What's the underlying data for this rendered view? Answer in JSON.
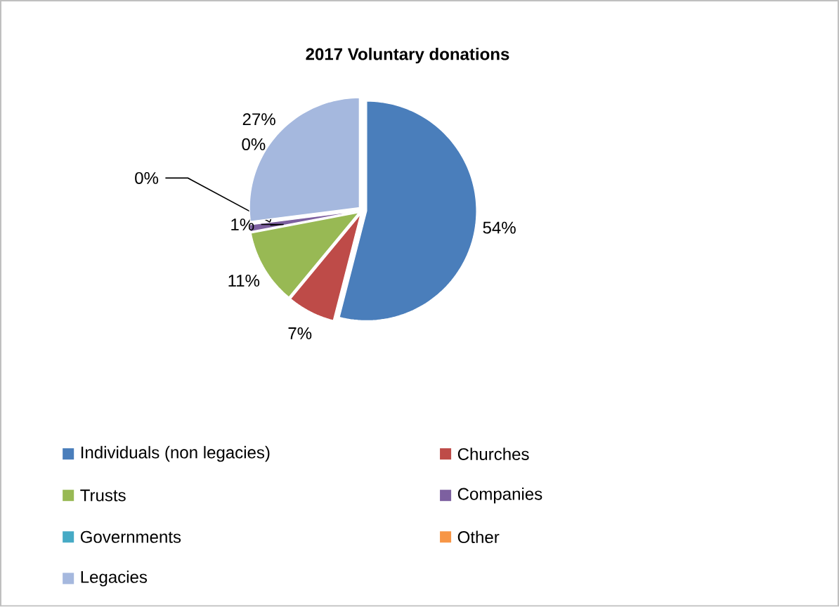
{
  "chart_data": {
    "type": "pie",
    "title": "2017 Voluntary donations",
    "categories": [
      "Individuals (non legacies)",
      "Churches",
      "Trusts",
      "Companies",
      "Governments",
      "Other",
      "Legacies"
    ],
    "values": [
      54,
      7,
      11,
      1,
      0,
      0,
      27
    ],
    "value_labels": [
      "54%",
      "7%",
      "11%",
      "1%",
      "0%",
      "0%",
      "27%"
    ],
    "colors": [
      "#4a7ebb",
      "#be4b48",
      "#98b954",
      "#7d60a0",
      "#46aac5",
      "#f79646",
      "#a5b8de"
    ],
    "legend": "bottom"
  }
}
